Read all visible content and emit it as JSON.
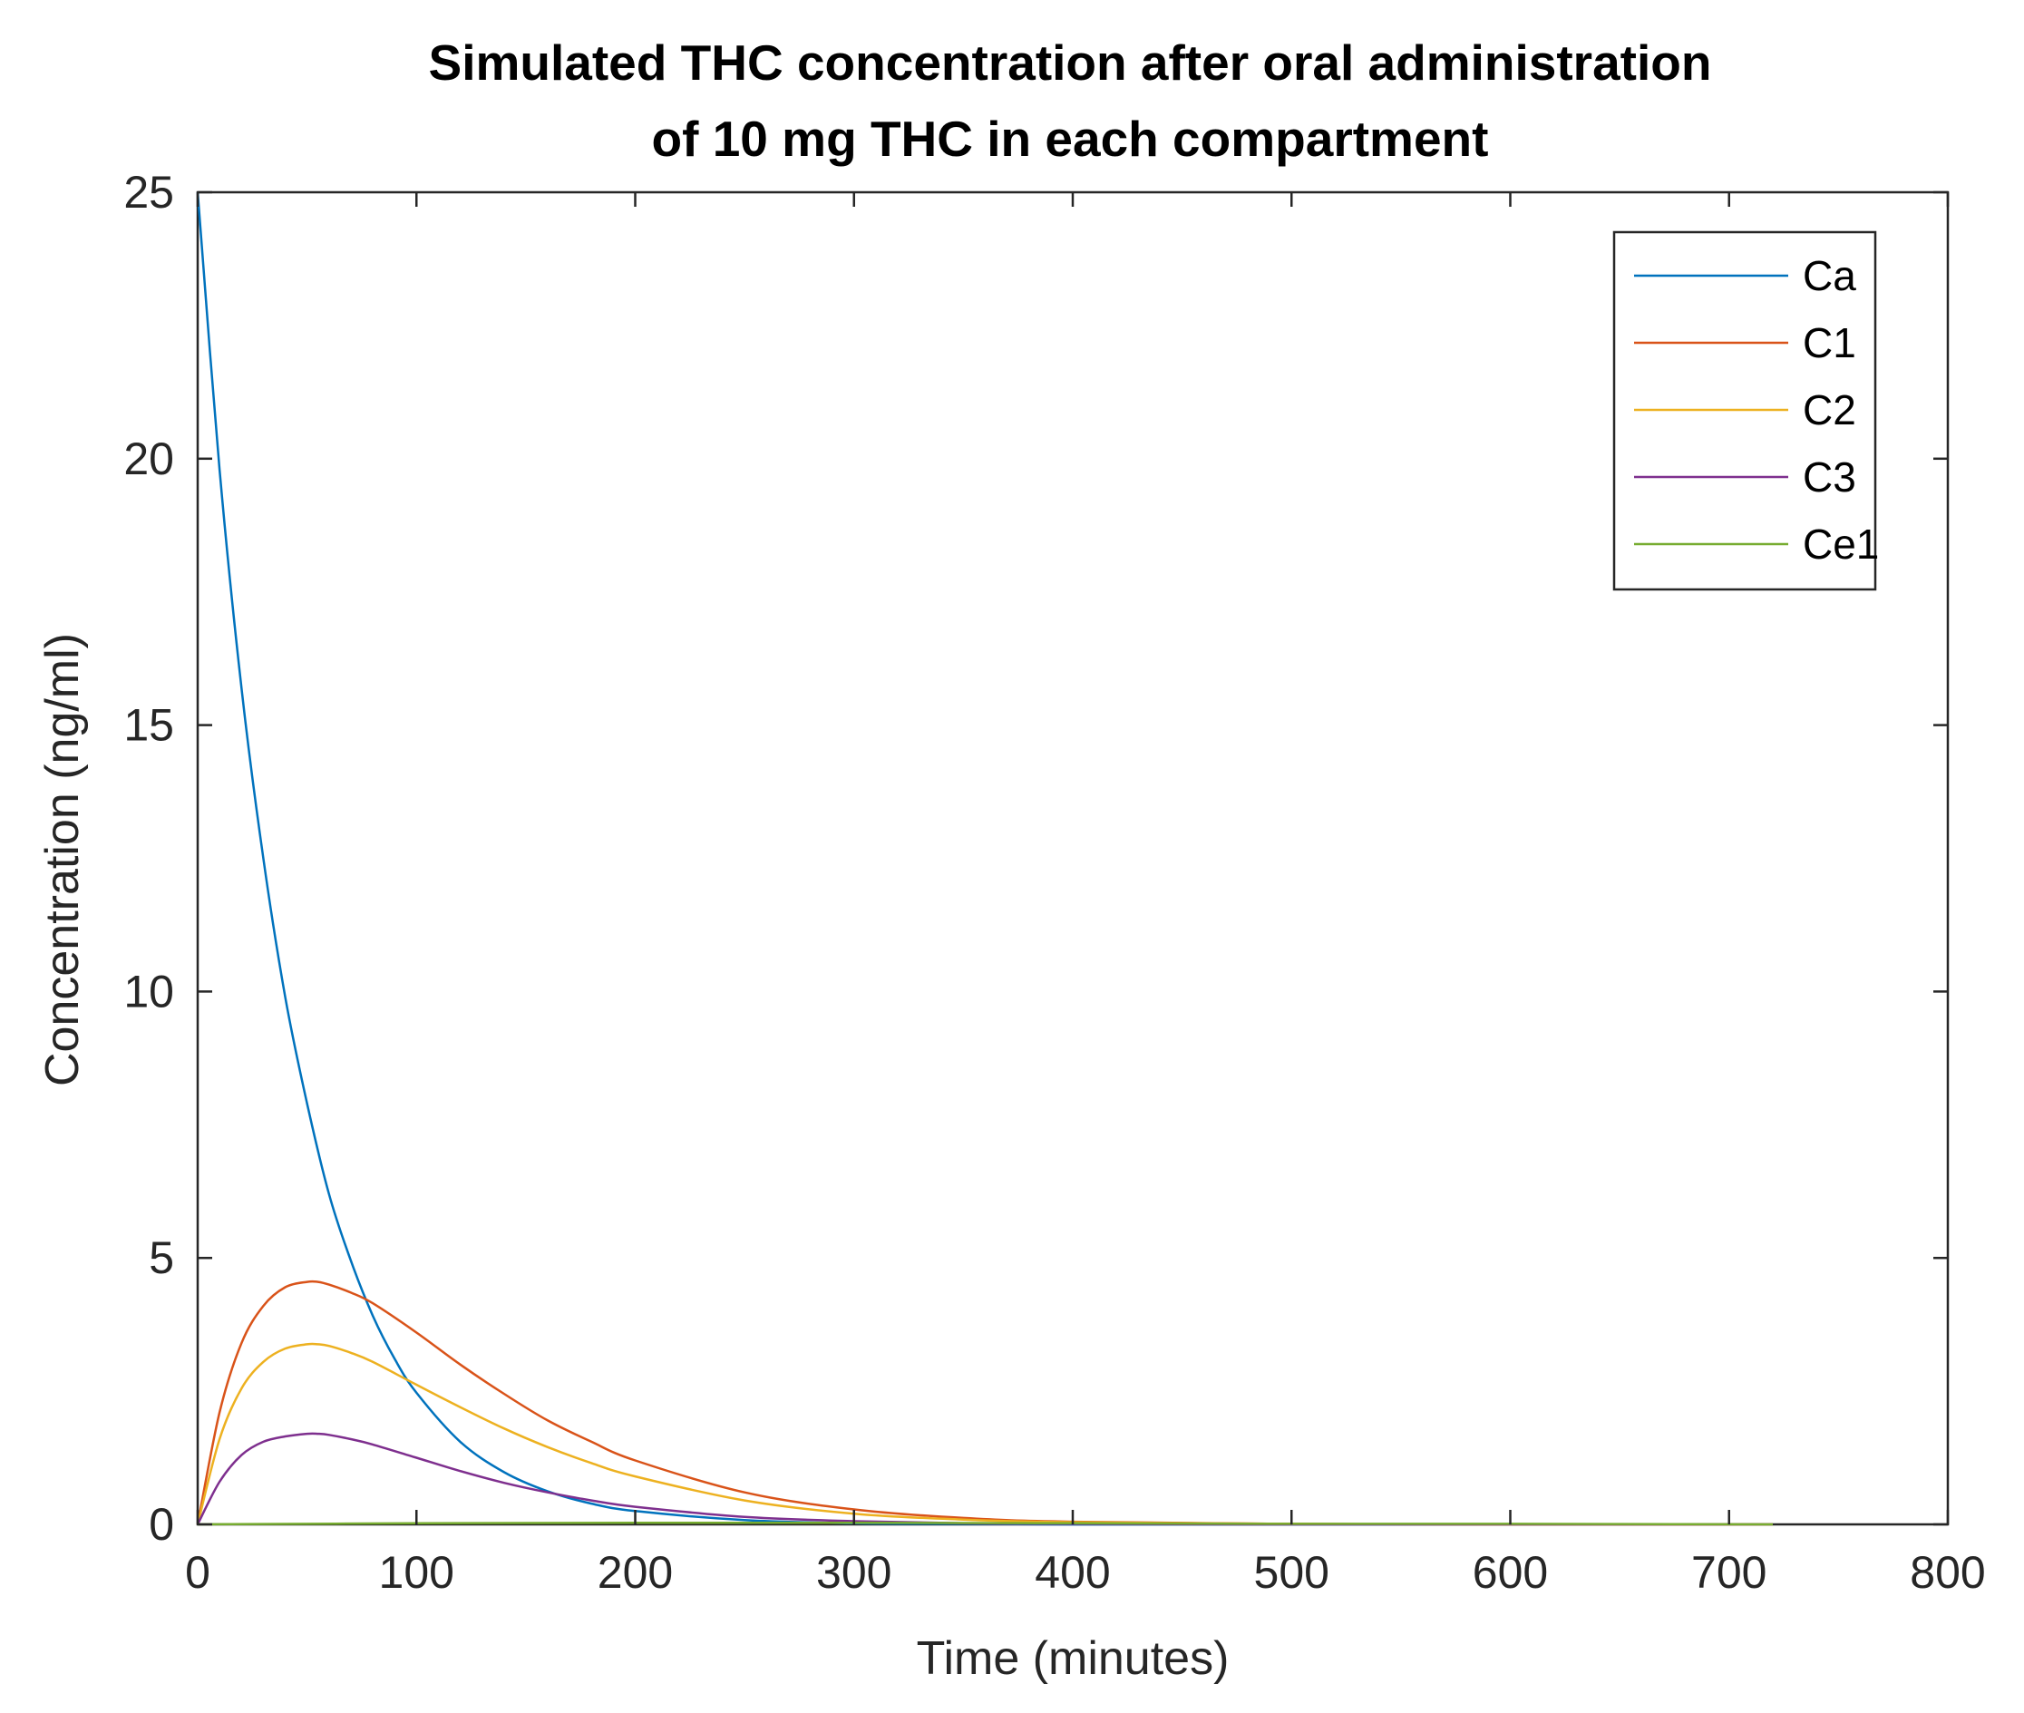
{
  "chart_data": {
    "type": "line",
    "title": [
      "Simulated THC concentration after oral administration",
      "of 10 mg THC in each compartment"
    ],
    "xlabel": "Time (minutes)",
    "ylabel": "Concentration (ng/ml)",
    "xlim": [
      0,
      800
    ],
    "ylim": [
      0,
      25
    ],
    "xticks": [
      0,
      100,
      200,
      300,
      400,
      500,
      600,
      700,
      800
    ],
    "yticks": [
      0,
      5,
      10,
      15,
      20,
      25
    ],
    "grid": false,
    "legend_position": "top-right",
    "series": [
      {
        "name": "Ca",
        "color": "#0072BD",
        "x": [
          0,
          10,
          20,
          30,
          40,
          50,
          60,
          70,
          80,
          90,
          100,
          120,
          140,
          160,
          180,
          200,
          250,
          300,
          350,
          400,
          500,
          600,
          720
        ],
        "y": [
          25,
          19.8,
          15.7,
          12.5,
          9.9,
          7.9,
          6.2,
          4.95,
          3.92,
          3.11,
          2.47,
          1.55,
          0.98,
          0.62,
          0.39,
          0.25,
          0.08,
          0.02,
          0.01,
          0,
          0,
          0,
          0
        ]
      },
      {
        "name": "C1",
        "color": "#D95319",
        "x": [
          0,
          10,
          20,
          30,
          40,
          50,
          55,
          60,
          70,
          80,
          100,
          120,
          140,
          160,
          180,
          200,
          250,
          300,
          350,
          400,
          500,
          600,
          720
        ],
        "y": [
          0,
          2.1,
          3.4,
          4.1,
          4.45,
          4.55,
          4.55,
          4.5,
          4.35,
          4.15,
          3.6,
          3.0,
          2.45,
          1.95,
          1.55,
          1.2,
          0.6,
          0.28,
          0.12,
          0.05,
          0.01,
          0,
          0
        ]
      },
      {
        "name": "C2",
        "color": "#EDB120",
        "x": [
          0,
          10,
          20,
          30,
          40,
          50,
          55,
          60,
          70,
          80,
          100,
          120,
          140,
          160,
          180,
          200,
          250,
          300,
          350,
          400,
          500,
          600,
          720
        ],
        "y": [
          0,
          1.6,
          2.55,
          3.05,
          3.3,
          3.38,
          3.38,
          3.35,
          3.22,
          3.05,
          2.62,
          2.2,
          1.8,
          1.45,
          1.15,
          0.9,
          0.45,
          0.2,
          0.09,
          0.04,
          0.01,
          0,
          0
        ]
      },
      {
        "name": "C3",
        "color": "#7E2F8E",
        "x": [
          0,
          10,
          20,
          30,
          40,
          50,
          55,
          60,
          70,
          80,
          100,
          120,
          140,
          160,
          180,
          200,
          250,
          300,
          350,
          400,
          500,
          600,
          720
        ],
        "y": [
          0,
          0.8,
          1.3,
          1.55,
          1.65,
          1.7,
          1.7,
          1.68,
          1.6,
          1.5,
          1.25,
          1.0,
          0.78,
          0.6,
          0.45,
          0.33,
          0.14,
          0.06,
          0.02,
          0.01,
          0,
          0,
          0
        ]
      },
      {
        "name": "Ce1",
        "color": "#77AC30",
        "x": [
          0,
          100,
          200,
          300,
          400,
          500,
          600,
          720
        ],
        "y": [
          0,
          0.02,
          0.03,
          0.03,
          0.02,
          0.01,
          0.01,
          0
        ]
      }
    ]
  }
}
